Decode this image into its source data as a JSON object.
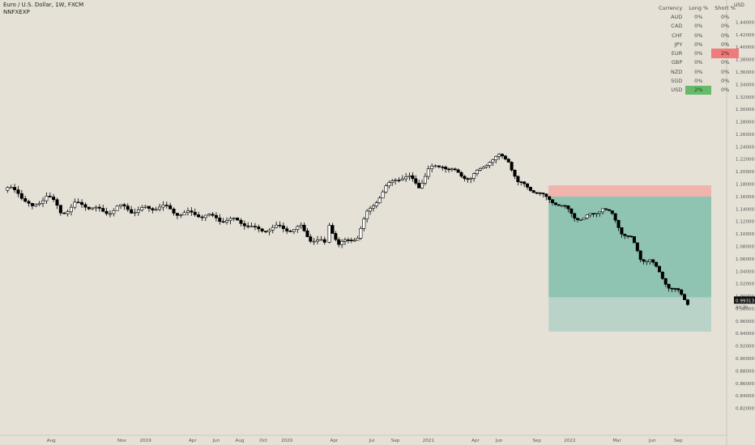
{
  "header": {
    "symbol": "Euro / U.S. Dollar, 1W, FXCM",
    "indicator": "NNFXEXP"
  },
  "colors": {
    "background": "#e5e1d7",
    "candle_up": "#ffffff",
    "candle_down": "#000000",
    "stop_zone": "#f1b3ad",
    "target_zone": "#8fc4b3",
    "projection_zone": "#bad3c8",
    "long_highlight": "#66bb6a",
    "short_highlight": "#ef7b7b",
    "price_label": "#111111"
  },
  "table": {
    "headers": [
      "Currency",
      "Long %",
      "Short %"
    ],
    "rows": [
      {
        "currency": "AUD",
        "long": "0%",
        "short": "0%"
      },
      {
        "currency": "CAD",
        "long": "0%",
        "short": "0%"
      },
      {
        "currency": "CHF",
        "long": "0%",
        "short": "0%"
      },
      {
        "currency": "JPY",
        "long": "0%",
        "short": "0%"
      },
      {
        "currency": "EUR",
        "long": "0%",
        "short": "2%"
      },
      {
        "currency": "GBP",
        "long": "0%",
        "short": "0%"
      },
      {
        "currency": "NZD",
        "long": "0%",
        "short": "0%"
      },
      {
        "currency": "SGD",
        "long": "0%",
        "short": "0%"
      },
      {
        "currency": "USD",
        "long": "2%",
        "short": "0%"
      }
    ]
  },
  "chart_data": {
    "type": "candlestick",
    "symbol": "EUR/USD",
    "timeframe": "1W",
    "y_axis_label": "USD",
    "ylim": [
      0.8,
      1.46
    ],
    "y_ticks": [
      "1.44000",
      "1.42000",
      "1.40000",
      "1.38000",
      "1.36000",
      "1.34000",
      "1.32000",
      "1.30000",
      "1.28000",
      "1.26000",
      "1.24000",
      "1.22000",
      "1.20000",
      "1.18000",
      "1.16000",
      "1.14000",
      "1.12000",
      "1.10000",
      "1.08000",
      "1.06000",
      "1.04000",
      "1.02000",
      "1.00000",
      "0.98000",
      "0.96000",
      "0.94000",
      "0.92000",
      "0.90000",
      "0.88000",
      "0.86000",
      "0.84000",
      "0.82000"
    ],
    "x_ticks": [
      "Aug",
      "Nov",
      "2019",
      "Apr",
      "Jun",
      "Aug",
      "Oct",
      "2020",
      "Apr",
      "Jul",
      "Sep",
      "2021",
      "Apr",
      "Jun",
      "Sep",
      "2022",
      "Mar",
      "Jun",
      "Sep"
    ],
    "x_tick_positions": [
      1.0,
      2.5,
      3.0,
      4.0,
      4.5,
      5.0,
      5.5,
      6.0,
      7.0,
      7.8,
      8.3,
      9.0,
      10.0,
      10.5,
      11.3,
      12.0,
      13.0,
      13.75,
      14.3
    ],
    "last_price": "0.99313",
    "countdown": "4d 3h",
    "close_series": [
      [
        0.0,
        1.17
      ],
      [
        0.3,
        1.165
      ],
      [
        0.6,
        1.145
      ],
      [
        0.9,
        1.16
      ],
      [
        1.2,
        1.135
      ],
      [
        1.5,
        1.15
      ],
      [
        1.8,
        1.14
      ],
      [
        2.1,
        1.138
      ],
      [
        2.4,
        1.142
      ],
      [
        2.7,
        1.135
      ],
      [
        3.0,
        1.145
      ],
      [
        3.3,
        1.14
      ],
      [
        3.6,
        1.137
      ],
      [
        3.9,
        1.135
      ],
      [
        4.2,
        1.125
      ],
      [
        4.5,
        1.13
      ],
      [
        4.8,
        1.12
      ],
      [
        5.1,
        1.115
      ],
      [
        5.4,
        1.11
      ],
      [
        5.7,
        1.105
      ],
      [
        6.0,
        1.11
      ],
      [
        6.3,
        1.112
      ],
      [
        6.5,
        1.095
      ],
      [
        6.8,
        1.08
      ],
      [
        6.9,
        1.12
      ],
      [
        7.1,
        1.085
      ],
      [
        7.3,
        1.09
      ],
      [
        7.5,
        1.095
      ],
      [
        7.7,
        1.13
      ],
      [
        7.9,
        1.15
      ],
      [
        8.1,
        1.17
      ],
      [
        8.3,
        1.185
      ],
      [
        8.6,
        1.19
      ],
      [
        8.8,
        1.175
      ],
      [
        9.0,
        1.2
      ],
      [
        9.3,
        1.215
      ],
      [
        9.5,
        1.205
      ],
      [
        9.7,
        1.195
      ],
      [
        9.9,
        1.19
      ],
      [
        10.1,
        1.2
      ],
      [
        10.3,
        1.215
      ],
      [
        10.5,
        1.22
      ],
      [
        10.7,
        1.215
      ],
      [
        10.9,
        1.18
      ],
      [
        11.1,
        1.175
      ],
      [
        11.3,
        1.17
      ],
      [
        11.5,
        1.16
      ],
      [
        11.7,
        1.155
      ],
      [
        11.9,
        1.145
      ],
      [
        12.1,
        1.13
      ],
      [
        12.3,
        1.125
      ],
      [
        12.5,
        1.13
      ],
      [
        12.7,
        1.14
      ],
      [
        12.9,
        1.125
      ],
      [
        13.1,
        1.1
      ],
      [
        13.3,
        1.09
      ],
      [
        13.5,
        1.06
      ],
      [
        13.7,
        1.06
      ],
      [
        13.9,
        1.04
      ],
      [
        14.1,
        1.02
      ],
      [
        14.3,
        1.01
      ],
      [
        14.5,
        0.993
      ]
    ],
    "trade_zones": {
      "entry": 1.16,
      "stop": 1.178,
      "target": 0.998,
      "projection_low": 0.943,
      "start_x": 11.55,
      "end_x": 15.0
    }
  }
}
